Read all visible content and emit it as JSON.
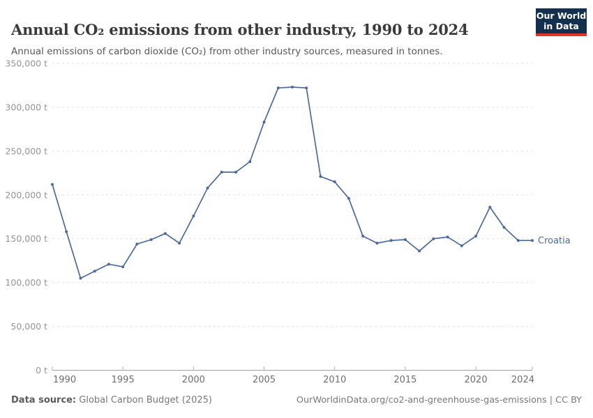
{
  "header": {
    "title": "Annual CO₂ emissions from other industry, 1990 to 2024",
    "subtitle": "Annual emissions of carbon dioxide (CO₂) from other industry sources, measured in tonnes.",
    "logo": {
      "line1": "Our World",
      "line2": "in Data"
    }
  },
  "footer": {
    "source_label": "Data source:",
    "source_text": " Global Carbon Budget (2025)",
    "credit_text": "OurWorldinData.org/co2-and-greenhouse-gas-emissions | CC BY"
  },
  "chart_data": {
    "type": "line",
    "title": "Annual CO₂ emissions from other industry, 1990 to 2024",
    "xlabel": "",
    "ylabel": "",
    "entity": "Croatia",
    "unit": "t",
    "xlim": [
      1990,
      2024
    ],
    "ylim": [
      0,
      350000
    ],
    "grid": true,
    "legend_position": "end-of-line-label",
    "x": [
      1990,
      1991,
      1992,
      1993,
      1994,
      1995,
      1996,
      1997,
      1998,
      1999,
      2000,
      2001,
      2002,
      2003,
      2004,
      2005,
      2006,
      2007,
      2008,
      2009,
      2010,
      2011,
      2012,
      2013,
      2014,
      2015,
      2016,
      2017,
      2018,
      2019,
      2020,
      2021,
      2022,
      2023,
      2024
    ],
    "series": [
      {
        "name": "Croatia",
        "values": [
          212000,
          158000,
          105000,
          113000,
          121000,
          118000,
          144000,
          149000,
          156000,
          145000,
          176000,
          208000,
          226000,
          226000,
          238000,
          283000,
          322000,
          323000,
          322000,
          221000,
          215000,
          196000,
          153000,
          145000,
          148000,
          149000,
          136000,
          150000,
          152000,
          142000,
          153000,
          186000,
          163000,
          148000,
          148000
        ]
      }
    ],
    "x_ticks": [
      1990,
      1995,
      2000,
      2005,
      2010,
      2015,
      2020,
      2024
    ],
    "y_ticks": [
      {
        "value": 0,
        "label": "0 t"
      },
      {
        "value": 50000,
        "label": "50,000 t"
      },
      {
        "value": 100000,
        "label": "100,000 t"
      },
      {
        "value": 150000,
        "label": "150,000 t"
      },
      {
        "value": 200000,
        "label": "200,000 t"
      },
      {
        "value": 250000,
        "label": "250,000 t"
      },
      {
        "value": 300000,
        "label": "300,000 t"
      },
      {
        "value": 350000,
        "label": "350,000 t"
      }
    ],
    "colors": {
      "line": "#4c6a9c",
      "gridline": "#e2e2e2",
      "axis": "#a1a1a1",
      "y_tick_label": "#949494",
      "x_tick_label": "#6e6e6e"
    }
  }
}
